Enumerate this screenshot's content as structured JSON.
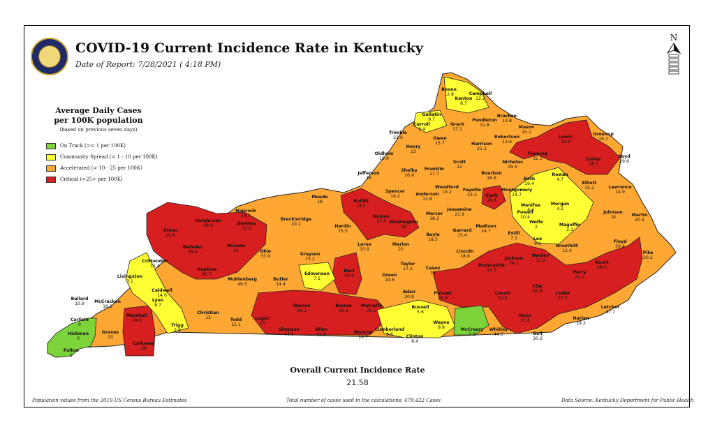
{
  "header": {
    "title": "COVID-19 Current Incidence Rate in Kentucky",
    "date_of_report": "Date of Report: 7/28/2021 ( 4:18 PM)"
  },
  "north_label": "N",
  "legend": {
    "title_line1": "Average Daily Cases",
    "title_line2": "per 100K population",
    "subtitle": "(based on previous seven days)",
    "items": [
      {
        "label": "On Track (=< 1 per 100K)",
        "color": "#7dd43a"
      },
      {
        "label": "Community Spread (> 1 - 10 per 100K)",
        "color": "#ffff33"
      },
      {
        "label": "Accelerated (> 10 - 25 per 100K)",
        "color": "#ffa733"
      },
      {
        "label": "Critical (>25+ per 100K)",
        "color": "#d71f1f"
      }
    ]
  },
  "colors": {
    "on_track": "#7dd43a",
    "community": "#ffff33",
    "accelerated": "#ffa733",
    "critical": "#d71f1f"
  },
  "counties": [
    {
      "name": "Boone",
      "rate": "12.8"
    },
    {
      "name": "Campbell",
      "rate": "12.2"
    },
    {
      "name": "Kenton",
      "rate": "8.7"
    },
    {
      "name": "Gallatin",
      "rate": "9.7"
    },
    {
      "name": "Carroll",
      "rate": "9.4"
    },
    {
      "name": "Grant",
      "rate": "17.1"
    },
    {
      "name": "Pendleton",
      "rate": "11.8"
    },
    {
      "name": "Bracken",
      "rate": "13.8"
    },
    {
      "name": "Mason",
      "rate": "15.1"
    },
    {
      "name": "Lewis",
      "rate": "26.9"
    },
    {
      "name": "Greenup",
      "rate": "19.1"
    },
    {
      "name": "Boyd",
      "rate": "19.6"
    },
    {
      "name": "Trimble",
      "rate": "23.6"
    },
    {
      "name": "Henry",
      "rate": "23"
    },
    {
      "name": "Owen",
      "rate": "15.7"
    },
    {
      "name": "Harrison",
      "rate": "21.2"
    },
    {
      "name": "Robertson",
      "rate": "13.6"
    },
    {
      "name": "Fleming",
      "rate": "32.3"
    },
    {
      "name": "Carter",
      "rate": "28.3"
    },
    {
      "name": "Oldham",
      "rate": "19.9"
    },
    {
      "name": "Scott",
      "rate": "12"
    },
    {
      "name": "Nicholas",
      "rate": "29.5"
    },
    {
      "name": "Jefferson",
      "rate": "16"
    },
    {
      "name": "Shelby",
      "rate": "16.9"
    },
    {
      "name": "Franklin",
      "rate": "17.7"
    },
    {
      "name": "Bourbon",
      "rate": "16.6"
    },
    {
      "name": "Bath",
      "rate": "19.4"
    },
    {
      "name": "Rowan",
      "rate": "4.7"
    },
    {
      "name": "Elliott",
      "rate": "15.2"
    },
    {
      "name": "Lawrence",
      "rate": "14.9"
    },
    {
      "name": "Spencer",
      "rate": "16.2"
    },
    {
      "name": "Woodford",
      "rate": "19.2"
    },
    {
      "name": "Fayette",
      "rate": "23.3"
    },
    {
      "name": "Anderson",
      "rate": "12.6"
    },
    {
      "name": "Montgomery",
      "rate": "14.7"
    },
    {
      "name": "Clark",
      "rate": "26.8"
    },
    {
      "name": "Menifee",
      "rate": "8.8"
    },
    {
      "name": "Morgan",
      "rate": "3.2"
    },
    {
      "name": "Johnson",
      "rate": "18"
    },
    {
      "name": "Martin",
      "rate": "20.4"
    },
    {
      "name": "Hancock",
      "rate": "14.7"
    },
    {
      "name": "Meade",
      "rate": "18"
    },
    {
      "name": "Bullitt",
      "rate": "18.5"
    },
    {
      "name": "Nelson",
      "rate": "25.3"
    },
    {
      "name": "Mercer",
      "rate": "18.2"
    },
    {
      "name": "Jessamine",
      "rate": "21.9"
    },
    {
      "name": "Powell",
      "rate": "10.4"
    },
    {
      "name": "Wolfe",
      "rate": "2"
    },
    {
      "name": "Magoffin",
      "rate": "2.3"
    },
    {
      "name": "Henderson",
      "rate": "38.9"
    },
    {
      "name": "Daviess",
      "rate": "33.2"
    },
    {
      "name": "Breckinridge",
      "rate": "20.2"
    },
    {
      "name": "Hardin",
      "rate": "25.5"
    },
    {
      "name": "Washington",
      "rate": "39"
    },
    {
      "name": "Boyle",
      "rate": "18.5"
    },
    {
      "name": "Garrard",
      "rate": "15.4"
    },
    {
      "name": "Madison",
      "rate": "24.7"
    },
    {
      "name": "Estill",
      "rate": "7.1"
    },
    {
      "name": "Lee",
      "rate": "9.6"
    },
    {
      "name": "Breathitt",
      "rate": "12.4"
    },
    {
      "name": "Floyd",
      "rate": "59.4"
    },
    {
      "name": "Union",
      "rate": "29.8"
    },
    {
      "name": "Webster",
      "rate": "48.6"
    },
    {
      "name": "McLean",
      "rate": "14"
    },
    {
      "name": "Ohio",
      "rate": "33.9"
    },
    {
      "name": "Grayson",
      "rate": "23.2"
    },
    {
      "name": "Larue",
      "rate": "15.9"
    },
    {
      "name": "Marion",
      "rate": "20"
    },
    {
      "name": "Lincoln",
      "rate": "18.6"
    },
    {
      "name": "Jackson",
      "rate": "76.1"
    },
    {
      "name": "Owsley",
      "rate": "12.9"
    },
    {
      "name": "Knott",
      "rate": "28.9"
    },
    {
      "name": "Pike",
      "rate": "20.2"
    },
    {
      "name": "Crittenden",
      "rate": "11.4"
    },
    {
      "name": "Hopkins",
      "rate": "45.7"
    },
    {
      "name": "Muhlenberg",
      "rate": "49.5"
    },
    {
      "name": "Butler",
      "rate": "14.4"
    },
    {
      "name": "Edmonson",
      "rate": "7.1"
    },
    {
      "name": "Hart",
      "rate": "40.5"
    },
    {
      "name": "Taylor",
      "rate": "17.2"
    },
    {
      "name": "Green",
      "rate": "19.6"
    },
    {
      "name": "Casey",
      "rate": "15"
    },
    {
      "name": "Rockcastle",
      "rate": "14.5"
    },
    {
      "name": "Clay",
      "rate": "82.6"
    },
    {
      "name": "Perry",
      "rate": "31.1"
    },
    {
      "name": "Livingston",
      "rate": "3.1"
    },
    {
      "name": "Caldwell",
      "rate": "14.6"
    },
    {
      "name": "Lyon",
      "rate": "8.7"
    },
    {
      "name": "Christian",
      "rate": "13"
    },
    {
      "name": "Todd",
      "rate": "15.1"
    },
    {
      "name": "Logan",
      "rate": "29"
    },
    {
      "name": "Warren",
      "rate": "26.3"
    },
    {
      "name": "Barren",
      "rate": "29.1"
    },
    {
      "name": "Metcalfe",
      "rate": "35.5"
    },
    {
      "name": "Adair",
      "rate": "20.8"
    },
    {
      "name": "Russell",
      "rate": "5.6"
    },
    {
      "name": "Pulaski",
      "rate": "28.8"
    },
    {
      "name": "Laurel",
      "rate": "52.4"
    },
    {
      "name": "Leslie",
      "rate": "27.5"
    },
    {
      "name": "Letcher",
      "rate": "47.7"
    },
    {
      "name": "Harlan",
      "rate": "19.2"
    },
    {
      "name": "Ballard",
      "rate": "10.9"
    },
    {
      "name": "McCracken",
      "rate": "16.2"
    },
    {
      "name": "Marshall",
      "rate": "29.9"
    },
    {
      "name": "Trigg",
      "rate": "2.9"
    },
    {
      "name": "Simpson",
      "rate": "44.6"
    },
    {
      "name": "Allen",
      "rate": "42.9"
    },
    {
      "name": "Monroe",
      "rate": "10.7"
    },
    {
      "name": "Cumberland",
      "rate": "8.6"
    },
    {
      "name": "Clinton",
      "rate": "8.4"
    },
    {
      "name": "Wayne",
      "rate": "9.8"
    },
    {
      "name": "McCreary",
      "rate": "0.8"
    },
    {
      "name": "Whitley",
      "rate": "44.5"
    },
    {
      "name": "Knox",
      "rate": "37.6"
    },
    {
      "name": "Bell",
      "rate": "30.2"
    },
    {
      "name": "Carlisle",
      "rate": "0"
    },
    {
      "name": "Hickman",
      "rate": "0"
    },
    {
      "name": "Graves",
      "rate": "23"
    },
    {
      "name": "Calloway",
      "rate": "26"
    },
    {
      "name": "Fulton",
      "rate": "0"
    }
  ],
  "overall": {
    "title": "Overall Current Incidence Rate",
    "value": "21.58"
  },
  "footer": {
    "population_note": "Population values from the 2019 US Census Bureau Estimates",
    "total_cases_note": "Total number of cases used in the calculations: 479,422 Cases",
    "data_source": "Data Source: Kentucky Department for Public Health"
  }
}
